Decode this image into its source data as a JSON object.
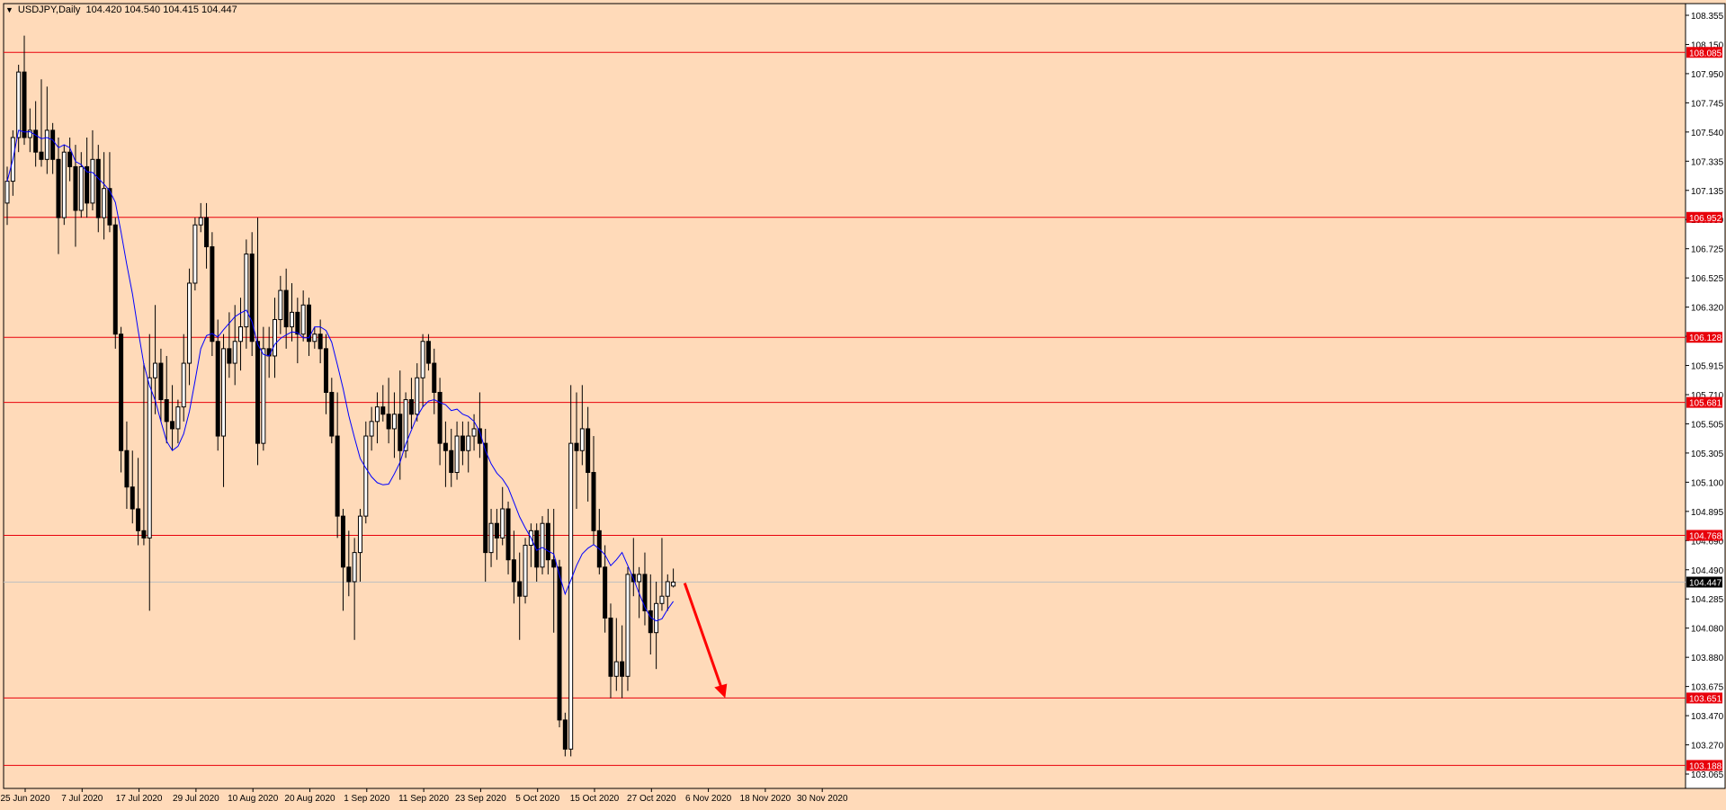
{
  "symbol_header": {
    "symbol": "USDJPY,Daily",
    "open": "104.420",
    "high": "104.540",
    "low": "104.415",
    "close": "104.447"
  },
  "colors": {
    "background": "#FFDAB9",
    "axis": "#000000",
    "level_line": "#E8000B",
    "level_label_bg": "#E8000B",
    "ma_line": "#0000FF",
    "bull_body": "#FFFFFF",
    "bear_body": "#000000",
    "arrow": "#FF0000",
    "current_price_line": "#C0C0C0"
  },
  "chart_data": {
    "type": "candlestick",
    "title": "",
    "x_tick_labels": [
      "25 Jun 2020",
      "7 Jul 2020",
      "17 Jul 2020",
      "29 Jul 2020",
      "10 Aug 2020",
      "20 Aug 2020",
      "1 Sep 2020",
      "11 Sep 2020",
      "23 Sep 2020",
      "5 Oct 2020",
      "15 Oct 2020",
      "27 Oct 2020",
      "6 Nov 2020",
      "18 Nov 2020",
      "30 Nov 2020"
    ],
    "y_tick_labels": [
      "108.355",
      "108.150",
      "107.950",
      "107.745",
      "107.540",
      "107.335",
      "107.135",
      "106.930",
      "106.725",
      "106.525",
      "106.320",
      "106.115",
      "105.915",
      "105.710",
      "105.505",
      "105.305",
      "105.100",
      "104.895",
      "104.690",
      "104.490",
      "104.285",
      "104.080",
      "103.880",
      "103.675",
      "103.470",
      "103.270",
      "103.065"
    ],
    "ylim": [
      103.03,
      108.42
    ],
    "horizontal_levels": [
      "108.085",
      "106.952",
      "106.128",
      "105.681",
      "104.768",
      "103.651",
      "103.188"
    ],
    "current_price": "104.447",
    "indicator": "moving-average",
    "annotation": "down-arrow from 104.44 toward 103.70",
    "candles": [
      [
        107.05,
        107.3,
        106.9,
        107.2
      ],
      [
        107.2,
        107.55,
        107.1,
        107.5
      ],
      [
        107.5,
        108.0,
        107.4,
        107.95
      ],
      [
        107.95,
        108.2,
        107.45,
        107.5
      ],
      [
        107.5,
        107.7,
        107.4,
        107.55
      ],
      [
        107.55,
        107.75,
        107.3,
        107.4
      ],
      [
        107.4,
        107.9,
        107.3,
        107.35
      ],
      [
        107.35,
        107.85,
        107.25,
        107.55
      ],
      [
        107.55,
        107.6,
        107.25,
        107.35
      ],
      [
        107.35,
        107.5,
        106.7,
        106.95
      ],
      [
        106.95,
        107.45,
        106.9,
        107.4
      ],
      [
        107.4,
        107.5,
        107.2,
        107.3
      ],
      [
        107.3,
        107.45,
        106.75,
        107.0
      ],
      [
        107.0,
        107.4,
        106.95,
        107.3
      ],
      [
        107.3,
        107.5,
        106.95,
        107.05
      ],
      [
        107.05,
        107.55,
        107.0,
        107.35
      ],
      [
        107.35,
        107.45,
        106.85,
        106.95
      ],
      [
        106.95,
        107.4,
        106.8,
        107.15
      ],
      [
        107.15,
        107.4,
        106.85,
        106.9
      ],
      [
        106.9,
        106.95,
        106.05,
        106.15
      ],
      [
        106.15,
        106.2,
        105.2,
        105.35
      ],
      [
        105.35,
        105.55,
        104.95,
        105.1
      ],
      [
        105.1,
        105.35,
        104.85,
        104.95
      ],
      [
        104.95,
        105.3,
        104.7,
        104.8
      ],
      [
        104.8,
        105.95,
        104.7,
        104.75
      ],
      [
        104.75,
        106.15,
        104.25,
        105.85
      ],
      [
        105.85,
        106.35,
        105.6,
        105.95
      ],
      [
        105.95,
        106.05,
        105.55,
        105.7
      ],
      [
        105.7,
        106.0,
        105.4,
        105.55
      ],
      [
        105.55,
        105.8,
        105.35,
        105.5
      ],
      [
        105.5,
        105.7,
        105.4,
        105.65
      ],
      [
        105.65,
        106.15,
        105.55,
        105.95
      ],
      [
        105.95,
        106.6,
        105.8,
        106.5
      ],
      [
        106.5,
        106.95,
        106.45,
        106.9
      ],
      [
        106.9,
        107.05,
        106.85,
        106.95
      ],
      [
        106.95,
        107.05,
        106.6,
        106.75
      ],
      [
        106.75,
        106.85,
        106.0,
        106.1
      ],
      [
        106.1,
        106.25,
        105.35,
        105.45
      ],
      [
        105.45,
        106.15,
        105.1,
        106.05
      ],
      [
        106.05,
        106.3,
        105.85,
        105.95
      ],
      [
        105.95,
        106.35,
        105.8,
        106.1
      ],
      [
        106.1,
        106.4,
        105.9,
        106.2
      ],
      [
        106.2,
        106.8,
        106.05,
        106.7
      ],
      [
        106.7,
        106.85,
        106.0,
        106.1
      ],
      [
        106.1,
        106.95,
        105.25,
        105.4
      ],
      [
        105.4,
        106.2,
        105.35,
        106.05
      ],
      [
        106.05,
        106.2,
        105.85,
        106.0
      ],
      [
        106.0,
        106.4,
        105.85,
        106.25
      ],
      [
        106.25,
        106.55,
        106.15,
        106.45
      ],
      [
        106.45,
        106.6,
        106.05,
        106.2
      ],
      [
        106.2,
        106.5,
        106.1,
        106.3
      ],
      [
        106.3,
        106.4,
        105.95,
        106.15
      ],
      [
        106.15,
        106.45,
        106.1,
        106.35
      ],
      [
        106.35,
        106.4,
        106.0,
        106.1
      ],
      [
        106.1,
        106.2,
        106.05,
        106.15
      ],
      [
        106.15,
        106.25,
        105.95,
        106.05
      ],
      [
        106.05,
        106.15,
        105.6,
        105.75
      ],
      [
        105.75,
        105.85,
        105.4,
        105.45
      ],
      [
        105.45,
        105.75,
        104.75,
        104.9
      ],
      [
        104.9,
        104.95,
        104.25,
        104.55
      ],
      [
        104.55,
        104.8,
        104.35,
        104.45
      ],
      [
        104.45,
        104.75,
        104.05,
        104.65
      ],
      [
        104.65,
        104.95,
        104.45,
        104.9
      ],
      [
        104.9,
        105.55,
        104.85,
        105.45
      ],
      [
        105.45,
        105.65,
        105.35,
        105.55
      ],
      [
        105.55,
        105.75,
        105.4,
        105.65
      ],
      [
        105.65,
        105.8,
        105.55,
        105.6
      ],
      [
        105.6,
        105.85,
        105.4,
        105.5
      ],
      [
        105.5,
        105.75,
        105.3,
        105.6
      ],
      [
        105.6,
        105.9,
        105.15,
        105.35
      ],
      [
        105.35,
        105.75,
        105.3,
        105.7
      ],
      [
        105.7,
        105.85,
        105.5,
        105.6
      ],
      [
        105.6,
        105.95,
        105.55,
        105.85
      ],
      [
        105.85,
        106.15,
        105.65,
        106.1
      ],
      [
        106.1,
        106.15,
        105.9,
        105.95
      ],
      [
        105.95,
        106.05,
        105.6,
        105.75
      ],
      [
        105.75,
        105.85,
        105.25,
        105.4
      ],
      [
        105.4,
        105.55,
        105.1,
        105.35
      ],
      [
        105.35,
        105.5,
        105.1,
        105.2
      ],
      [
        105.2,
        105.55,
        105.15,
        105.45
      ],
      [
        105.45,
        105.55,
        105.25,
        105.35
      ],
      [
        105.35,
        105.55,
        105.2,
        105.45
      ],
      [
        105.45,
        105.6,
        105.35,
        105.5
      ],
      [
        105.5,
        105.75,
        105.3,
        105.4
      ],
      [
        105.4,
        105.5,
        104.45,
        104.65
      ],
      [
        104.65,
        104.95,
        104.55,
        104.85
      ],
      [
        104.85,
        104.95,
        104.6,
        104.75
      ],
      [
        104.75,
        105.1,
        104.7,
        104.95
      ],
      [
        104.95,
        105.0,
        104.5,
        104.6
      ],
      [
        104.6,
        104.8,
        104.3,
        104.45
      ],
      [
        104.45,
        104.65,
        104.05,
        104.35
      ],
      [
        104.35,
        104.75,
        104.3,
        104.7
      ],
      [
        104.7,
        104.85,
        104.55,
        104.8
      ],
      [
        104.8,
        104.85,
        104.45,
        104.55
      ],
      [
        104.55,
        104.9,
        104.5,
        104.85
      ],
      [
        104.85,
        104.95,
        104.5,
        104.6
      ],
      [
        104.6,
        104.95,
        104.1,
        104.55
      ],
      [
        104.55,
        104.6,
        103.45,
        103.5
      ],
      [
        103.5,
        103.55,
        103.25,
        103.3
      ],
      [
        103.3,
        105.8,
        103.25,
        105.4
      ],
      [
        105.4,
        105.75,
        104.95,
        105.35
      ],
      [
        105.35,
        105.8,
        105.25,
        105.5
      ],
      [
        105.5,
        105.65,
        105.0,
        105.2
      ],
      [
        105.2,
        105.45,
        104.7,
        104.8
      ],
      [
        104.8,
        104.95,
        104.5,
        104.55
      ],
      [
        104.55,
        104.7,
        104.1,
        104.2
      ],
      [
        104.2,
        104.3,
        103.65,
        103.8
      ],
      [
        103.8,
        104.2,
        103.7,
        103.9
      ],
      [
        103.9,
        104.15,
        103.65,
        103.8
      ],
      [
        103.8,
        104.55,
        103.7,
        104.5
      ],
      [
        104.5,
        104.75,
        104.35,
        104.45
      ],
      [
        104.45,
        104.55,
        104.2,
        104.5
      ],
      [
        104.5,
        104.65,
        104.15,
        104.25
      ],
      [
        104.25,
        104.5,
        103.95,
        104.1
      ],
      [
        104.1,
        104.45,
        103.85,
        104.3
      ],
      [
        104.3,
        104.75,
        104.25,
        104.35
      ],
      [
        104.35,
        104.5,
        104.25,
        104.45
      ],
      [
        104.42,
        104.54,
        104.41,
        104.447
      ]
    ]
  }
}
